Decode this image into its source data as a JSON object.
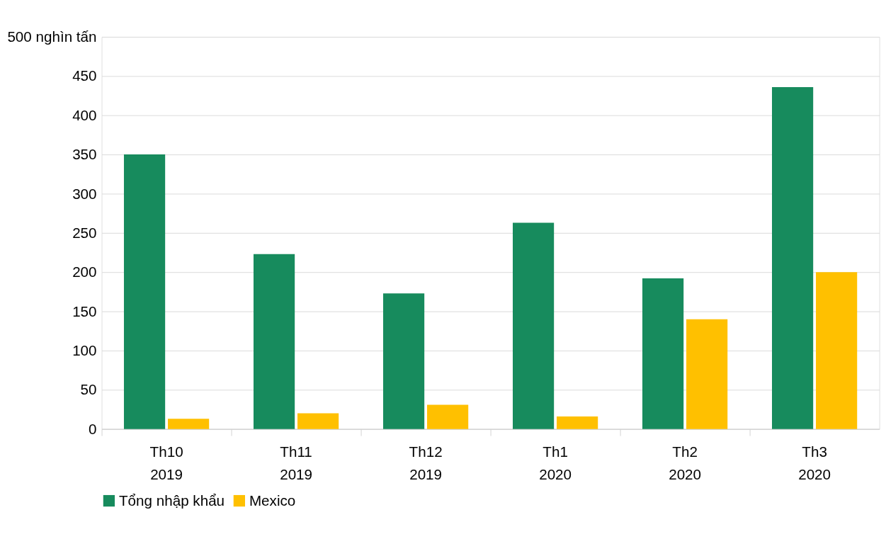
{
  "chart_data": {
    "type": "bar",
    "categories": [
      "Th10\n2019",
      "Th11\n2019",
      "Th12\n2019",
      "Th1\n2020",
      "Th2\n2020",
      "Th3\n2020"
    ],
    "series": [
      {
        "name": "Tổng nhập khẩu",
        "color": "#178b5d",
        "values": [
          350,
          223,
          173,
          263,
          192,
          436
        ]
      },
      {
        "name": "Mexico",
        "color": "#ffc000",
        "values": [
          13,
          20,
          31,
          16,
          140,
          200
        ]
      }
    ],
    "ylim": [
      0,
      500
    ],
    "yticks": [
      0,
      50,
      100,
      150,
      200,
      250,
      300,
      350,
      400,
      450,
      {
        "value": 500,
        "label": "500 nghìn tấn"
      }
    ],
    "grid": "y",
    "legend": "bottom"
  }
}
